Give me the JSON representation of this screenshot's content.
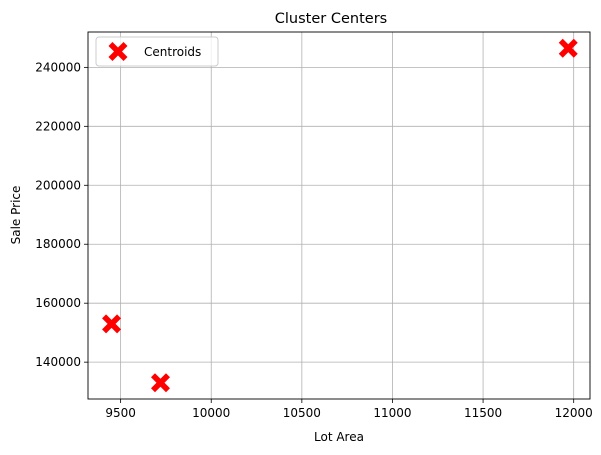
{
  "chart_data": {
    "type": "scatter",
    "title": "Cluster Centers",
    "xlabel": "Lot Area",
    "ylabel": "Sale Price",
    "xlim": [
      9320,
      12090
    ],
    "ylim": [
      127500,
      252000
    ],
    "xticks": [
      9500,
      10000,
      10500,
      11000,
      11500,
      12000
    ],
    "yticks": [
      140000,
      160000,
      180000,
      200000,
      220000,
      240000
    ],
    "grid": true,
    "legend": {
      "position": "top-left",
      "entries": [
        "Centroids"
      ]
    },
    "series": [
      {
        "name": "Centroids",
        "marker": "X",
        "color": "#ff0000",
        "points": [
          {
            "x": 9450,
            "y": 153000
          },
          {
            "x": 9720,
            "y": 133000
          },
          {
            "x": 11970,
            "y": 246500
          }
        ]
      }
    ]
  }
}
